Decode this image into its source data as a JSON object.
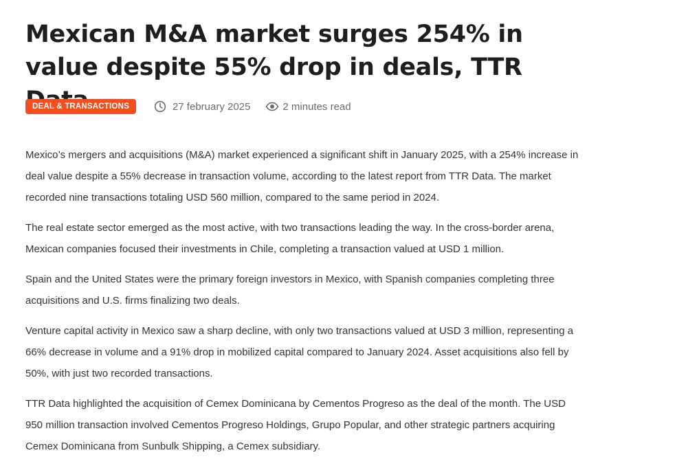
{
  "article": {
    "title": "Mexican M&A market surges 254% in value despite 55% drop in deals, TTR Data",
    "category": "DEAL & TRANSACTIONS",
    "date": "27 february 2025",
    "reading_time": "2 minutes read",
    "accent_color": "#f24e1e",
    "icons": {
      "date": "clock-icon",
      "reading": "eye-icon"
    },
    "paragraphs": [
      "Mexico’s mergers and acquisitions (M&A) market experienced a significant shift in January 2025, with a 254% increase in deal value despite a 55% decrease in transaction volume, according to the latest report from TTR Data. The market recorded nine transactions totaling USD 560 million, compared to the same period in 2024.",
      "The real estate sector emerged as the most active, with two transactions leading the way. In the cross-border arena, Mexican companies focused their investments in Chile, completing a transaction valued at USD 1 million.",
      "Spain and the United States were the primary foreign investors in Mexico, with Spanish companies completing three acquisitions and U.S. firms finalizing two deals.",
      "Venture capital activity in Mexico saw a sharp decline, with only two transactions valued at USD 3 million, representing a 66% decrease in volume and a 91% drop in mobilized capital compared to January 2024. Asset acquisitions also fell by 50%, with just two recorded transactions.",
      "TTR Data highlighted the acquisition of Cemex Dominicana by Cementos Progreso as the deal of the month. The USD 950 million transaction involved Cementos Progreso Holdings, Grupo Popular, and other strategic partners acquiring Cemex Dominicana from Sunbulk Shipping, a Cemex subsidiary."
    ]
  }
}
